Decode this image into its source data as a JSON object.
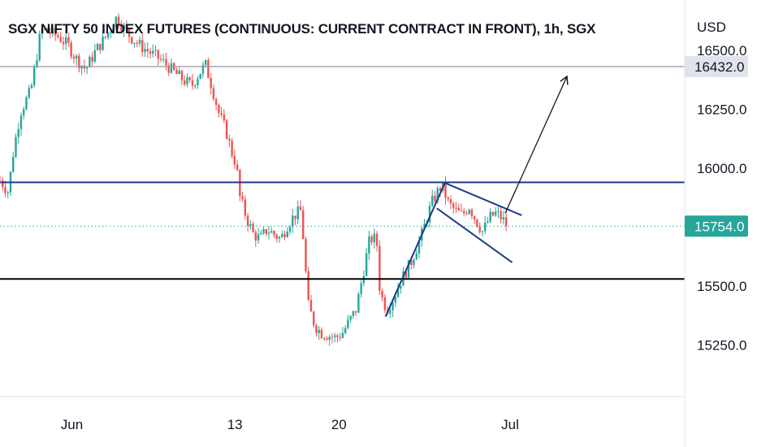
{
  "title": "SGX NIFTY 50 INDEX FUTURES (CONTINUOUS: CURRENT CONTRACT IN FRONT), 1h, SGX",
  "currency": "USD",
  "colors": {
    "up": "#26a69a",
    "down": "#ef5350",
    "blue_line": "#1e3a8a",
    "black_line": "#000000",
    "gray_line": "#9598a1",
    "current_price": "#26a69a"
  },
  "chart_data": {
    "type": "candlestick",
    "ylim": [
      15120,
      16680
    ],
    "y_ticks": [
      {
        "value": 16500,
        "label": "16500.0"
      },
      {
        "value": 16250,
        "label": "16250.0"
      },
      {
        "value": 16000,
        "label": "16000.0"
      },
      {
        "value": 15500,
        "label": "15500.0"
      },
      {
        "value": 15250,
        "label": "15250.0"
      }
    ],
    "x_ticks": [
      {
        "at": 0.105,
        "label": "Jun"
      },
      {
        "at": 0.343,
        "label": "13"
      },
      {
        "at": 0.495,
        "label": "20"
      },
      {
        "at": 0.745,
        "label": "Jul"
      }
    ],
    "price_path": [
      [
        0.0,
        15950
      ],
      [
        0.012,
        15900
      ],
      [
        0.02,
        16080
      ],
      [
        0.03,
        16240
      ],
      [
        0.045,
        16330
      ],
      [
        0.055,
        16500
      ],
      [
        0.06,
        16590
      ],
      [
        0.07,
        16580
      ],
      [
        0.085,
        16560
      ],
      [
        0.1,
        16520
      ],
      [
        0.11,
        16470
      ],
      [
        0.125,
        16420
      ],
      [
        0.14,
        16500
      ],
      [
        0.155,
        16560
      ],
      [
        0.17,
        16640
      ],
      [
        0.18,
        16600
      ],
      [
        0.19,
        16560
      ],
      [
        0.205,
        16520
      ],
      [
        0.22,
        16490
      ],
      [
        0.235,
        16460
      ],
      [
        0.25,
        16420
      ],
      [
        0.265,
        16380
      ],
      [
        0.28,
        16350
      ],
      [
        0.29,
        16400
      ],
      [
        0.3,
        16440
      ],
      [
        0.31,
        16340
      ],
      [
        0.32,
        16230
      ],
      [
        0.33,
        16160
      ],
      [
        0.34,
        16050
      ],
      [
        0.345,
        16020
      ],
      [
        0.35,
        15880
      ],
      [
        0.36,
        15790
      ],
      [
        0.37,
        15720
      ],
      [
        0.38,
        15700
      ],
      [
        0.39,
        15740
      ],
      [
        0.4,
        15720
      ],
      [
        0.41,
        15700
      ],
      [
        0.42,
        15760
      ],
      [
        0.43,
        15800
      ],
      [
        0.44,
        15820
      ],
      [
        0.445,
        15620
      ],
      [
        0.45,
        15420
      ],
      [
        0.46,
        15330
      ],
      [
        0.47,
        15300
      ],
      [
        0.48,
        15290
      ],
      [
        0.49,
        15280
      ],
      [
        0.5,
        15300
      ],
      [
        0.51,
        15350
      ],
      [
        0.52,
        15400
      ],
      [
        0.53,
        15550
      ],
      [
        0.54,
        15700
      ],
      [
        0.55,
        15700
      ],
      [
        0.555,
        15470
      ],
      [
        0.565,
        15400
      ],
      [
        0.575,
        15450
      ],
      [
        0.585,
        15520
      ],
      [
        0.6,
        15600
      ],
      [
        0.615,
        15710
      ],
      [
        0.63,
        15850
      ],
      [
        0.645,
        15930
      ],
      [
        0.655,
        15850
      ],
      [
        0.665,
        15820
      ],
      [
        0.675,
        15800
      ],
      [
        0.685,
        15840
      ],
      [
        0.695,
        15780
      ],
      [
        0.705,
        15730
      ],
      [
        0.715,
        15790
      ],
      [
        0.725,
        15810
      ],
      [
        0.735,
        15780
      ],
      [
        0.74,
        15754
      ]
    ],
    "horizontal_levels": [
      {
        "value": 16432.0,
        "color": "gray",
        "label": "16432.0"
      },
      {
        "value": 15940,
        "color": "blue"
      },
      {
        "value": 15530,
        "color": "black"
      }
    ],
    "current_price": {
      "value": 15754.0,
      "label": "15754.0"
    },
    "annotations": [
      {
        "kind": "trendline",
        "from": [
          0.563,
          15370
        ],
        "to": [
          0.65,
          15940
        ],
        "color": "blue"
      },
      {
        "kind": "trendline",
        "from": [
          0.648,
          15940
        ],
        "to": [
          0.762,
          15800
        ],
        "color": "blue"
      },
      {
        "kind": "trendline",
        "from": [
          0.638,
          15830
        ],
        "to": [
          0.748,
          15600
        ],
        "color": "blue"
      },
      {
        "kind": "arrow",
        "from": [
          0.738,
          15810
        ],
        "to": [
          0.828,
          16390
        ],
        "color": "black"
      }
    ]
  }
}
